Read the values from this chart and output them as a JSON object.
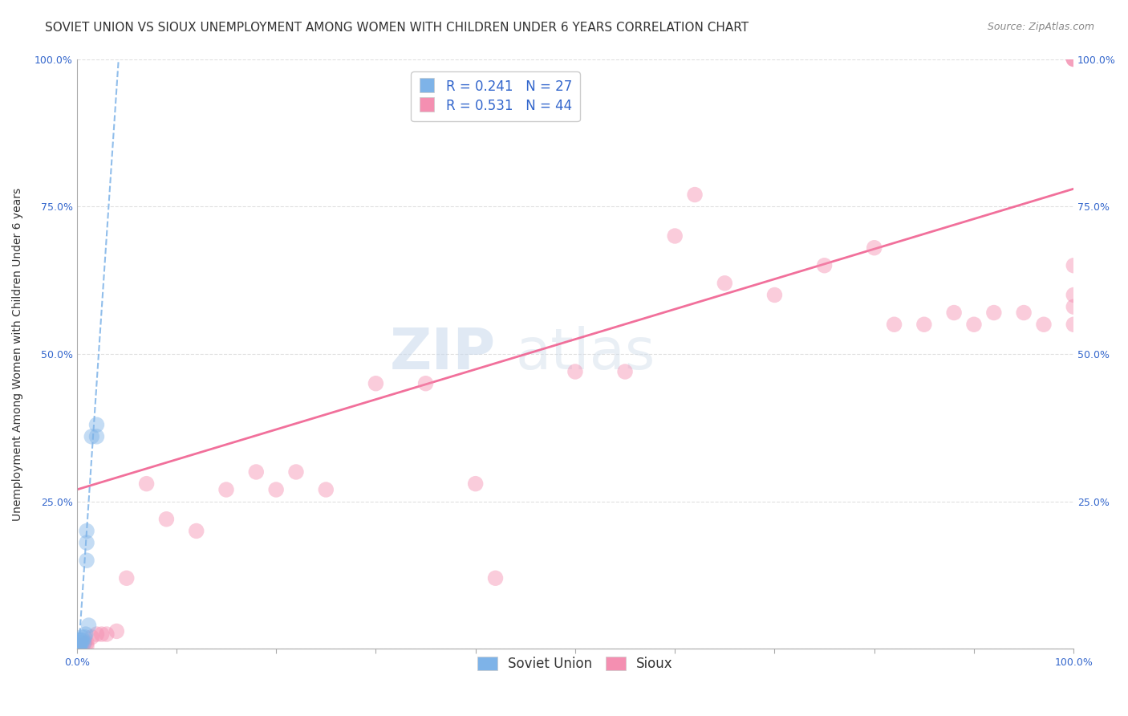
{
  "title": "SOVIET UNION VS SIOUX UNEMPLOYMENT AMONG WOMEN WITH CHILDREN UNDER 6 YEARS CORRELATION CHART",
  "source": "Source: ZipAtlas.com",
  "ylabel": "Unemployment Among Women with Children Under 6 years",
  "xlabel": "",
  "background_color": "#ffffff",
  "watermark_text": "ZIP",
  "watermark_text2": "atlas",
  "soviet_R": 0.241,
  "soviet_N": 27,
  "sioux_R": 0.531,
  "sioux_N": 44,
  "soviet_color": "#7EB3E8",
  "sioux_color": "#F48FB1",
  "soviet_line_color": "#7EB3E8",
  "sioux_line_color": "#F06090",
  "legend_text_color": "#3366CC",
  "soviet_x": [
    0.001,
    0.001,
    0.001,
    0.001,
    0.001,
    0.002,
    0.002,
    0.002,
    0.002,
    0.003,
    0.003,
    0.003,
    0.004,
    0.004,
    0.005,
    0.005,
    0.006,
    0.007,
    0.008,
    0.009,
    0.01,
    0.01,
    0.01,
    0.012,
    0.015,
    0.02,
    0.02
  ],
  "soviet_y": [
    0.0,
    0.0,
    0.0,
    0.005,
    0.01,
    0.0,
    0.005,
    0.01,
    0.015,
    0.0,
    0.005,
    0.01,
    0.01,
    0.015,
    0.01,
    0.02,
    0.015,
    0.01,
    0.02,
    0.025,
    0.15,
    0.18,
    0.2,
    0.04,
    0.36,
    0.36,
    0.38
  ],
  "sioux_x": [
    0.005,
    0.008,
    0.01,
    0.01,
    0.015,
    0.02,
    0.025,
    0.03,
    0.04,
    0.05,
    0.07,
    0.09,
    0.12,
    0.15,
    0.18,
    0.2,
    0.22,
    0.25,
    0.3,
    0.35,
    0.4,
    0.42,
    0.5,
    0.55,
    0.6,
    0.62,
    0.65,
    0.7,
    0.75,
    0.8,
    0.82,
    0.85,
    0.88,
    0.9,
    0.92,
    0.95,
    0.97,
    1.0,
    1.0,
    1.0,
    1.0,
    1.0,
    1.0,
    1.0
  ],
  "sioux_y": [
    0.005,
    0.01,
    0.005,
    0.01,
    0.02,
    0.025,
    0.025,
    0.025,
    0.03,
    0.12,
    0.28,
    0.22,
    0.2,
    0.27,
    0.3,
    0.27,
    0.3,
    0.27,
    0.45,
    0.45,
    0.28,
    0.12,
    0.47,
    0.47,
    0.7,
    0.77,
    0.62,
    0.6,
    0.65,
    0.68,
    0.55,
    0.55,
    0.57,
    0.55,
    0.57,
    0.57,
    0.55,
    0.55,
    0.58,
    0.6,
    0.65,
    1.0,
    1.0,
    1.0
  ],
  "sioux_line_intercept": 0.27,
  "sioux_line_slope": 0.51,
  "soviet_line_intercept": -0.05,
  "soviet_line_slope": 25.0,
  "xlim": [
    0.0,
    1.0
  ],
  "ylim": [
    0.0,
    1.0
  ],
  "grid_color": "#CCCCCC",
  "title_fontsize": 11,
  "source_fontsize": 9,
  "axis_label_fontsize": 10,
  "tick_fontsize": 9,
  "legend_fontsize": 12,
  "marker_size": 14,
  "marker_alpha": 0.45
}
